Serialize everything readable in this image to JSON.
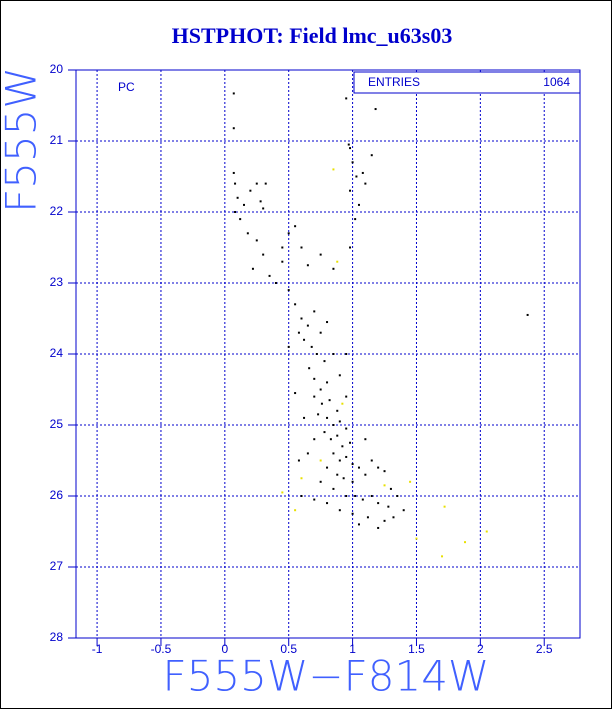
{
  "chart_data": {
    "type": "scatter",
    "title": "HSTPHOT: Field lmc_u63s03",
    "xlabel": "F555W−F814W",
    "ylabel": "F555W",
    "annotation": "PC",
    "stats": {
      "label": "ENTRIES",
      "value": 1064
    },
    "xlim": [
      -1.165,
      2.78
    ],
    "ylim": [
      28,
      20
    ],
    "xticks": [
      -1,
      -0.5,
      0,
      0.5,
      1,
      1.5,
      2,
      2.5
    ],
    "yticks": [
      20,
      21,
      22,
      23,
      24,
      25,
      26,
      27,
      28
    ],
    "grid": true,
    "series": [
      {
        "color": "#000000",
        "x": [
          0.07,
          0.07,
          0.95,
          1.18,
          2.37,
          0.07,
          0.08,
          0.1,
          0.08,
          0.12,
          0.2,
          0.25,
          0.28,
          0.32,
          0.3,
          0.15,
          0.98,
          1.0,
          1.03,
          0.98,
          1.05,
          1.1,
          1.15,
          1.02,
          0.97,
          1.08,
          0.18,
          0.25,
          0.3,
          0.22,
          0.35,
          0.45,
          0.5,
          0.55,
          0.6,
          0.65,
          0.75,
          0.85,
          0.98,
          0.4,
          0.5,
          0.55,
          0.6,
          0.65,
          0.7,
          0.62,
          0.68,
          0.75,
          0.8,
          0.58,
          0.72,
          0.78,
          0.85,
          0.66,
          0.7,
          0.75,
          0.8,
          0.9,
          0.95,
          0.7,
          0.76,
          0.82,
          0.88,
          0.73,
          0.8,
          0.85,
          0.9,
          0.95,
          0.78,
          0.83,
          0.88,
          0.92,
          0.98,
          0.7,
          0.65,
          0.85,
          0.9,
          0.95,
          1.0,
          1.05,
          0.8,
          0.88,
          0.93,
          1.0,
          1.1,
          1.15,
          1.2,
          1.25,
          0.75,
          0.85,
          0.95,
          1.02,
          1.08,
          1.15,
          1.2,
          1.28,
          1.35,
          1.32,
          1.25,
          1.12,
          1.0,
          0.9,
          0.8,
          0.7,
          0.6,
          1.4,
          1.05,
          1.2,
          0.62,
          0.58,
          0.55,
          1.1,
          1.3,
          0.95,
          0.5,
          0.45
        ],
        "values": [
          20.33,
          20.82,
          20.4,
          20.55,
          23.45,
          21.45,
          21.6,
          21.8,
          22.0,
          22.1,
          21.7,
          21.6,
          21.85,
          21.6,
          21.95,
          21.9,
          21.1,
          21.3,
          21.5,
          21.7,
          21.9,
          21.6,
          21.2,
          22.1,
          21.05,
          21.45,
          22.3,
          22.4,
          22.6,
          22.8,
          22.9,
          22.7,
          22.3,
          22.2,
          22.5,
          22.75,
          22.6,
          22.8,
          22.5,
          23.0,
          23.1,
          23.3,
          23.5,
          23.6,
          23.4,
          23.8,
          23.9,
          23.7,
          23.55,
          23.7,
          24.0,
          24.1,
          24.0,
          24.2,
          24.35,
          24.5,
          24.4,
          24.3,
          24.0,
          24.6,
          24.7,
          24.65,
          24.8,
          24.85,
          24.9,
          25.0,
          24.95,
          25.05,
          25.1,
          25.2,
          25.15,
          25.3,
          25.25,
          25.2,
          25.4,
          25.4,
          25.5,
          25.45,
          25.55,
          25.6,
          25.6,
          25.7,
          25.75,
          25.8,
          25.7,
          25.5,
          25.6,
          25.65,
          25.8,
          25.9,
          26.0,
          26.0,
          26.05,
          26.0,
          26.1,
          26.15,
          26.0,
          26.3,
          26.35,
          26.3,
          26.25,
          26.2,
          26.1,
          26.05,
          26.0,
          26.2,
          26.4,
          26.45,
          24.9,
          25.5,
          24.55,
          25.2,
          25.9,
          24.6,
          23.9,
          22.5
        ]
      },
      {
        "color": "#e8e000",
        "x": [
          0.85,
          0.6,
          0.55,
          0.45,
          0.75,
          1.25,
          1.45,
          1.5,
          1.72,
          1.88,
          1.7,
          2.05,
          0.92,
          0.88
        ],
        "values": [
          21.4,
          25.75,
          26.2,
          25.95,
          25.5,
          25.85,
          25.8,
          26.6,
          26.15,
          26.65,
          26.85,
          26.5,
          24.7,
          22.7
        ]
      }
    ]
  }
}
